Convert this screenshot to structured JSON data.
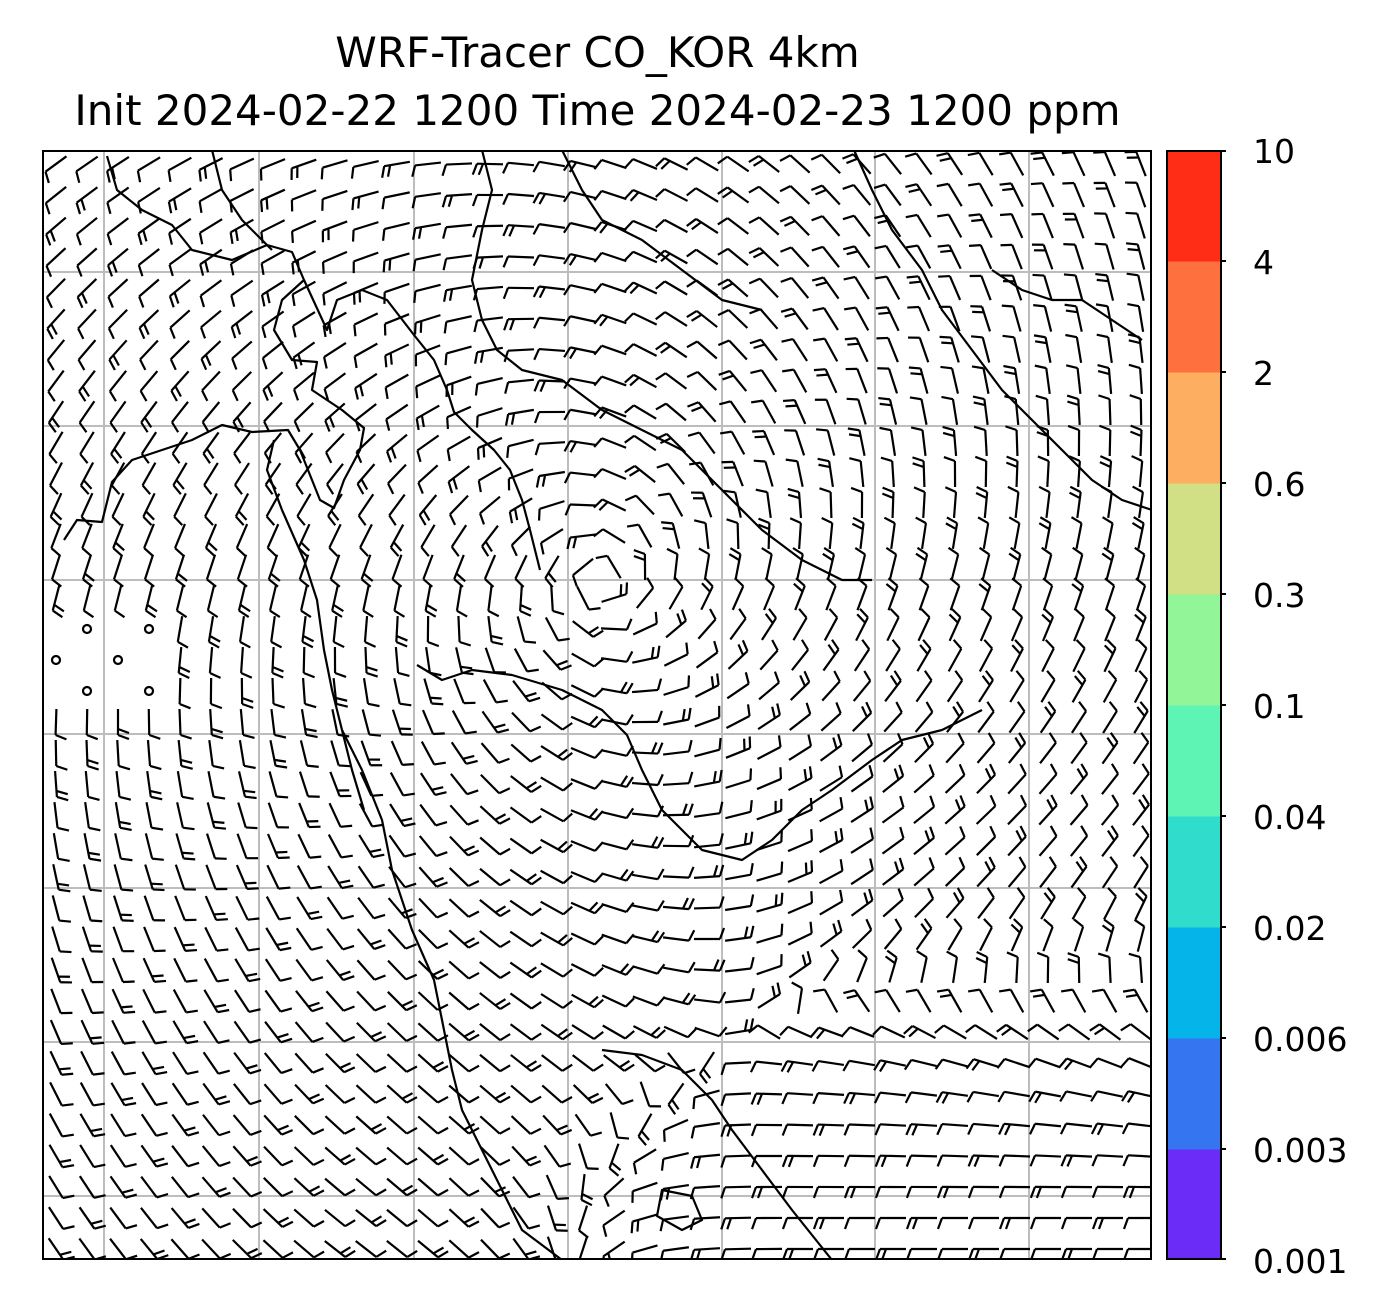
{
  "title": {
    "line1": "WRF-Tracer CO_KOR 4km",
    "line2": "Init 2024-02-22 1200 Time 2024-02-23 1200 ppm"
  },
  "colorbar": {
    "tick_labels": [
      "10",
      "4",
      "2",
      "0.6",
      "0.3",
      "0.1",
      "0.04",
      "0.02",
      "0.006",
      "0.003",
      "0.001"
    ],
    "colors": [
      "#6a2cf6",
      "#3575f0",
      "#05b4e8",
      "#30dccc",
      "#5ef5b4",
      "#92f597",
      "#d1e084",
      "#fdae61",
      "#fe703d",
      "#ff2d16"
    ]
  },
  "map": {
    "features": [
      "wind-barbs",
      "coastlines",
      "gridlines"
    ],
    "grid_color": "#bdbdbd",
    "line_color": "#000000"
  }
}
